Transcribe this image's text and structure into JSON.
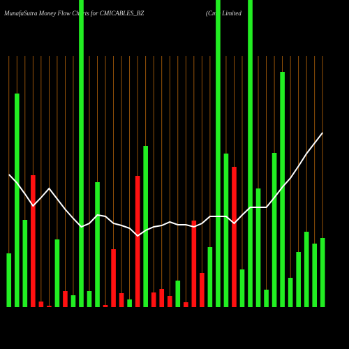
{
  "chart_data": {
    "type": "bar",
    "title": "MunafaSutra  Money Flow  Charts for CMICABLES_BZ",
    "subtitle": "(Cmi) Limited",
    "values": [
      77,
      306,
      125,
      189,
      8,
      2,
      97,
      23,
      17,
      440,
      23,
      179,
      3,
      83,
      20,
      11,
      188,
      231,
      21,
      26,
      16,
      38,
      7,
      124,
      49,
      86,
      440,
      220,
      201,
      54,
      440,
      170,
      25,
      221,
      337,
      42,
      79,
      108,
      91,
      99
    ],
    "colors": [
      "#22ee22",
      "#22ee22",
      "#22ee22",
      "#ff1111",
      "#ff1111",
      "#ff1111",
      "#22ee22",
      "#ff1111",
      "#22ee22",
      "#22ee22",
      "#22ee22",
      "#22ee22",
      "#ff1111",
      "#ff1111",
      "#ff1111",
      "#22ee22",
      "#ff1111",
      "#22ee22",
      "#ff1111",
      "#ff1111",
      "#ff1111",
      "#22ee22",
      "#ff1111",
      "#ff1111",
      "#ff1111",
      "#22ee22",
      "#22ee22",
      "#22ee22",
      "#ff1111",
      "#22ee22",
      "#22ee22",
      "#22ee22",
      "#22ee22",
      "#22ee22",
      "#22ee22",
      "#22ee22",
      "#22ee22",
      "#22ee22",
      "#22ee22",
      "#22ee22"
    ],
    "line": {
      "color": "#ffffff",
      "values": [
        190,
        178,
        162,
        145,
        157,
        170,
        155,
        140,
        127,
        115,
        120,
        132,
        130,
        120,
        117,
        113,
        102,
        110,
        115,
        117,
        122,
        118,
        118,
        115,
        120,
        130,
        130,
        130,
        120,
        132,
        143,
        143,
        143,
        157,
        172,
        185,
        202,
        220,
        235,
        250
      ]
    },
    "ylim": [
      0,
      440
    ],
    "grid_color": "#b8650a"
  }
}
